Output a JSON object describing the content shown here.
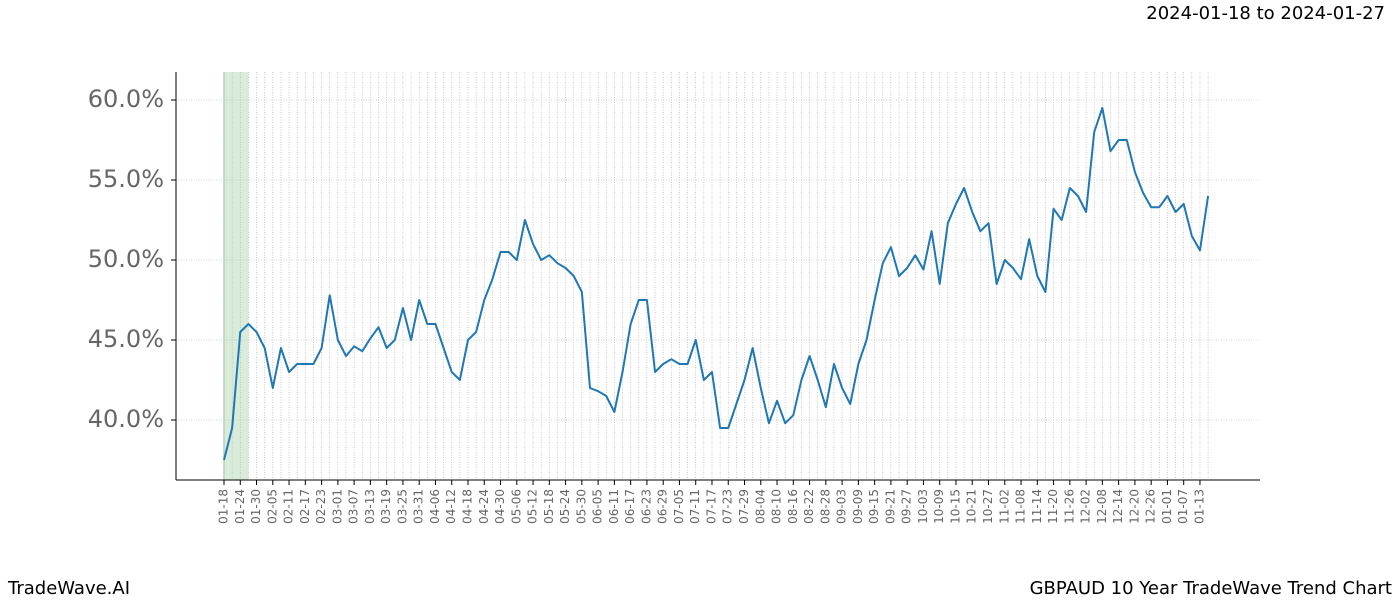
{
  "chart_data": {
    "type": "line",
    "title": "GBPAUD 10 Year TradeWave Trend Chart",
    "subtitle": "2024-01-18 to 2024-01-27",
    "brand": "TradeWave.AI",
    "categories": [
      "01-18",
      null,
      "01-24",
      null,
      "01-30",
      null,
      "02-05",
      null,
      "02-11",
      null,
      "02-17",
      null,
      "02-23",
      null,
      "03-01",
      null,
      "03-07",
      null,
      "03-13",
      null,
      "03-19",
      null,
      "03-25",
      null,
      "03-31",
      null,
      "04-06",
      null,
      "04-12",
      null,
      "04-18",
      null,
      "04-24",
      null,
      "04-30",
      null,
      "05-06",
      null,
      "05-12",
      null,
      "05-18",
      null,
      "05-24",
      null,
      "05-30",
      null,
      "06-05",
      null,
      "06-11",
      null,
      "06-17",
      null,
      "06-23",
      null,
      "06-29",
      null,
      "07-05",
      null,
      "07-11",
      null,
      "07-17",
      null,
      "07-23",
      null,
      "07-29",
      null,
      "08-04",
      null,
      "08-10",
      null,
      "08-16",
      null,
      "08-22",
      null,
      "08-28",
      null,
      "09-03",
      null,
      "09-09",
      null,
      "09-15",
      null,
      "09-21",
      null,
      "09-27",
      null,
      "10-03",
      null,
      "10-09",
      null,
      "10-15",
      null,
      "10-21",
      null,
      "10-27",
      null,
      "11-02",
      null,
      "11-08",
      null,
      "11-14",
      null,
      "11-20",
      null,
      "11-26",
      null,
      "12-02",
      null,
      "12-08",
      null,
      "12-14",
      null,
      "12-20",
      null,
      "12-26",
      null,
      "01-01",
      null,
      "01-07",
      null,
      "01-13",
      null
    ],
    "series": [
      {
        "color": "#1f77b4",
        "values": [
          37.5,
          39.5,
          45.5,
          46,
          45.5,
          44.5,
          42,
          44.5,
          43,
          43.5,
          43.5,
          43.5,
          44.5,
          47.8,
          45,
          44,
          44.6,
          44.3,
          45.1,
          45.8,
          44.5,
          45,
          47,
          45,
          47.5,
          46,
          46,
          44.5,
          43,
          42.5,
          45,
          45.5,
          47.5,
          48.8,
          50.5,
          50.5,
          50,
          52.5,
          51,
          50,
          50.3,
          49.8,
          49.5,
          49,
          48,
          42,
          41.8,
          41.5,
          40.5,
          43,
          46,
          47.5,
          47.5,
          43,
          43.5,
          43.8,
          43.5,
          43.5,
          45,
          42.5,
          43,
          39.5,
          39.5,
          41,
          42.5,
          44.5,
          42,
          39.8,
          41.2,
          39.8,
          40.3,
          42.5,
          44,
          42.5,
          40.8,
          43.5,
          42,
          41,
          43.5,
          45,
          47.5,
          49.8,
          50.8,
          49,
          49.5,
          50.3,
          49.4,
          51.8,
          48.5,
          52.3,
          53.5,
          54.5,
          53,
          51.8,
          52.3,
          48.5,
          50,
          49.5,
          48.8,
          51.3,
          49,
          48,
          53.2,
          52.5,
          54.5,
          54,
          53,
          58,
          59.5,
          56.8,
          57.5,
          57.5,
          55.5,
          54.2,
          53.3,
          53.3,
          54,
          53,
          53.5,
          51.5,
          50.6,
          54
        ]
      }
    ],
    "highlight_range": [
      0,
      3
    ],
    "highlight_color": "#d9ecd9",
    "ylim": [
      36.25,
      61.75
    ],
    "yticks": [
      {
        "value": 40,
        "label": "40.0%"
      },
      {
        "value": 45,
        "label": "45.0%"
      },
      {
        "value": 50,
        "label": "50.0%"
      },
      {
        "value": 55,
        "label": "55.0%"
      },
      {
        "value": 60,
        "label": "60.0%"
      }
    ],
    "grid": true
  }
}
